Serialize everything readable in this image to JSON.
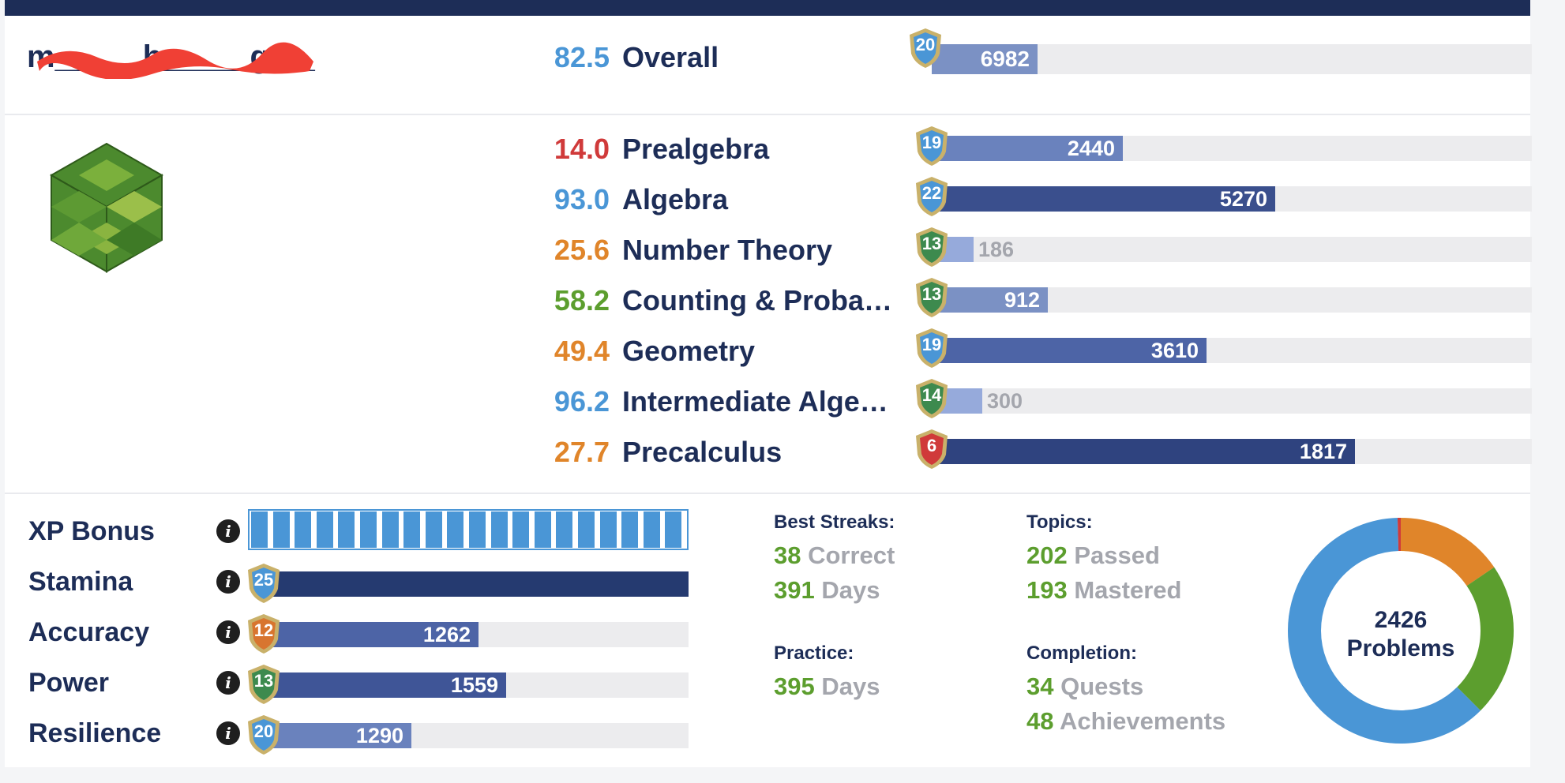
{
  "user": {
    "name": "m_____h_____gt__"
  },
  "overall": {
    "score": "82.5",
    "label": "Overall",
    "level": "20",
    "value": "6982",
    "fraction": 0.176,
    "score_color": "#4a96d6",
    "bar_color": "#7b91c4"
  },
  "subjects": [
    {
      "score": "14.0",
      "name": "Prealgebra",
      "level": "19",
      "value": "2440",
      "fraction": 0.318,
      "score_color": "#d03a3a",
      "bar_color": "#6a82bd",
      "shield": "blue"
    },
    {
      "score": "93.0",
      "name": "Algebra",
      "level": "22",
      "value": "5270",
      "fraction": 0.572,
      "score_color": "#4a96d6",
      "bar_color": "#3a4f8d",
      "shield": "blue"
    },
    {
      "score": "25.6",
      "name": "Number Theory",
      "level": "13",
      "value": "186",
      "fraction": 0.07,
      "score_color": "#e0852a",
      "bar_color": "#96aadb",
      "shield": "green"
    },
    {
      "score": "58.2",
      "name": "Counting & Probability",
      "level": "13",
      "value": "912",
      "fraction": 0.194,
      "score_color": "#5c9e2e",
      "bar_color": "#7b91c4",
      "shield": "green"
    },
    {
      "score": "49.4",
      "name": "Geometry",
      "level": "19",
      "value": "3610",
      "fraction": 0.458,
      "score_color": "#e0852a",
      "bar_color": "#4d64a6",
      "shield": "blue"
    },
    {
      "score": "96.2",
      "name": "Intermediate Algebra",
      "level": "14",
      "value": "300",
      "fraction": 0.084,
      "score_color": "#4a96d6",
      "bar_color": "#96aadb",
      "shield": "green"
    },
    {
      "score": "27.7",
      "name": "Precalculus",
      "level": "6",
      "value": "1817",
      "fraction": 0.705,
      "score_color": "#e0852a",
      "bar_color": "#2f437f",
      "shield": "red"
    }
  ],
  "stats": {
    "xp_bonus": {
      "label": "XP Bonus",
      "segments": 20
    },
    "stamina": {
      "label": "Stamina",
      "level": "25",
      "fraction": 1.0,
      "bar_color": "#253a70",
      "shield": "blue"
    },
    "accuracy": {
      "label": "Accuracy",
      "level": "12",
      "value": "1262",
      "fraction": 0.5,
      "bar_color": "#4d64a6",
      "shield": "orange"
    },
    "power": {
      "label": "Power",
      "level": "13",
      "value": "1559",
      "fraction": 0.566,
      "bar_color": "#3f5597",
      "shield": "green"
    },
    "resilience": {
      "label": "Resilience",
      "level": "20",
      "value": "1290",
      "fraction": 0.34,
      "bar_color": "#6a82bd",
      "shield": "blue"
    }
  },
  "best_streaks": {
    "title": "Best Streaks:",
    "correct_num": "38",
    "correct_unit": "Correct",
    "days_num": "391",
    "days_unit": "Days"
  },
  "practice": {
    "title": "Practice:",
    "days_num": "395",
    "days_unit": "Days"
  },
  "topics": {
    "title": "Topics:",
    "passed_num": "202",
    "passed_unit": "Passed",
    "mastered_num": "193",
    "mastered_unit": "Mastered"
  },
  "completion": {
    "title": "Completion:",
    "quests_num": "34",
    "quests_unit": "Quests",
    "ach_num": "48",
    "ach_unit": "Achievements"
  },
  "problems": {
    "count": "2426",
    "label": "Problems",
    "segments": [
      {
        "color": "#e0852a",
        "fraction": 0.155
      },
      {
        "color": "#5c9e2e",
        "fraction": 0.22
      },
      {
        "color": "#4a96d6",
        "fraction": 0.62
      },
      {
        "color": "#d03a3a",
        "fraction": 0.005
      }
    ]
  },
  "colors": {
    "navy": "#1d2d57",
    "shield_blue": "#4a96d6",
    "shield_green": "#3d8a4e",
    "shield_red": "#d03a3a",
    "shield_orange": "#d8752f",
    "gold": "#c9b16a"
  }
}
